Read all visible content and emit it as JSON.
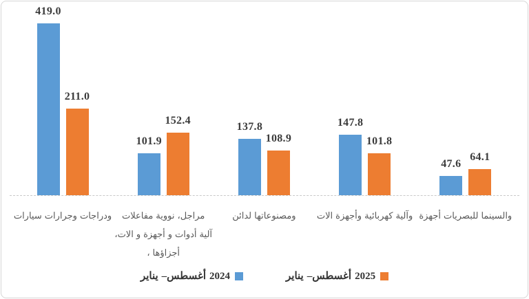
{
  "chart_data": {
    "type": "bar",
    "title": "",
    "grouping": "grouped-vertical",
    "categories": [
      "سيارات وجرارات ودراجات",
      "مفاعلات نووية ،مراجل ،الات و أجهزة و أدوات آلية ، أجزاؤها",
      "لدائن ومصنوعاتها",
      "الات وأجهزة كهربائية وآلية",
      "أجهزة للبصريات والسينما"
    ],
    "categories_display_lines": [
      [
        [
          "سيارات",
          "وجرارات",
          "ودراجات"
        ]
      ],
      [
        [
          "مفاعلات",
          "نووية",
          "،مراجل"
        ],
        [
          "،الات",
          "و",
          "أجهزة",
          "و",
          "أدوات",
          "آلية"
        ],
        [
          "،",
          "أجزاؤها"
        ]
      ],
      [
        [
          "لدائن",
          "ومصنوعاتها"
        ]
      ],
      [
        [
          "الات",
          "وأجهزة",
          "كهربائية",
          "وآلية"
        ]
      ],
      [
        [
          "أجهزة",
          "للبصريات",
          "والسينما"
        ]
      ]
    ],
    "series": [
      {
        "name": "يناير –أغسطس 2024",
        "name_words": [
          "يناير",
          "–أغسطس",
          "2024"
        ],
        "color": "#5B9BD5",
        "values": [
          419.0,
          101.9,
          137.8,
          147.8,
          47.6
        ],
        "labels": [
          "419.0",
          "101.9",
          "137.8",
          "147.8",
          "47.6"
        ]
      },
      {
        "name": "يناير –أغسطس 2025",
        "name_words": [
          "يناير",
          "–أغسطس",
          "2025"
        ],
        "color": "#ED7D31",
        "values": [
          211.0,
          152.4,
          108.9,
          101.8,
          64.1
        ],
        "labels": [
          "211.0",
          "152.4",
          "108.9",
          "101.8",
          "64.1"
        ]
      }
    ],
    "ylim": [
      0,
      440
    ],
    "grid": false,
    "y_axis_visible": false,
    "legend_position": "bottom",
    "axis_line_color": "#c9c9c9",
    "value_label_color": "#3b3b3b",
    "category_label_color": "#595959",
    "background_color": "#ffffff",
    "border_color": "#d6d6d6"
  }
}
